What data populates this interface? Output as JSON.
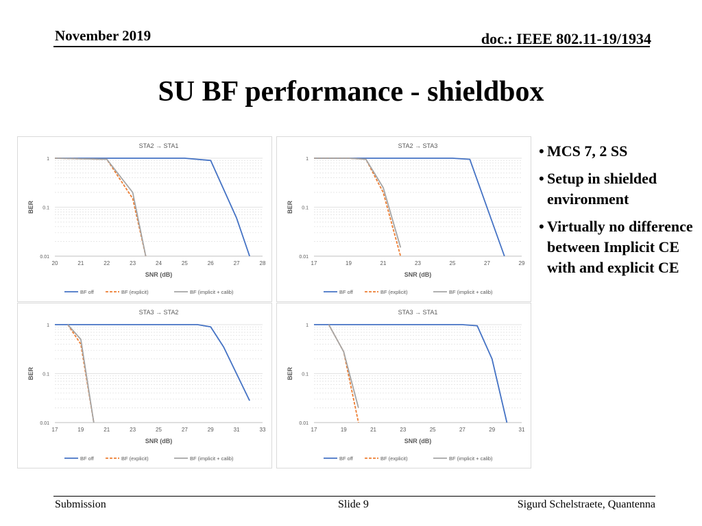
{
  "header": {
    "date": "November 2019",
    "doc": "doc.: IEEE 802.11-19/1934"
  },
  "title": "SU BF performance - shieldbox",
  "bullets": [
    "MCS 7, 2 SS",
    "Setup in shielded environment",
    "Virtually no difference between Implicit CE with and explicit CE"
  ],
  "footer": {
    "left": "Submission",
    "center": "Slide 9",
    "right": "Sigurd Schelstraete, Quantenna"
  },
  "colors": {
    "bf_off": "#4472C4",
    "bf_explicit": "#ED7D31",
    "bf_implicit": "#A5A5A5",
    "grid": "#d9d9d9"
  },
  "chart_data": [
    {
      "type": "line",
      "title": "STA2 → STA1",
      "xlabel": "SNR (dB)",
      "ylabel": "BER",
      "yscale": "log",
      "ylim": [
        0.01,
        1
      ],
      "xlim": [
        20,
        28
      ],
      "xticks": [
        20,
        21,
        22,
        23,
        24,
        25,
        26,
        27,
        28
      ],
      "yticks": [
        1,
        0.1,
        0.01
      ],
      "ytick_labels": [
        "1",
        "0.1",
        "0.01"
      ],
      "legend_position": "bottom",
      "grid": true,
      "series": [
        {
          "name": "BF off",
          "style": "solid",
          "color_key": "bf_off",
          "x": [
            20,
            21,
            22,
            23,
            24,
            25,
            26,
            27,
            27.5
          ],
          "y": [
            1,
            1,
            1,
            1,
            1,
            1,
            0.9,
            0.06,
            0.01
          ]
        },
        {
          "name": "BF (explicit)",
          "style": "dashed",
          "color_key": "bf_explicit",
          "x": [
            20,
            21,
            22,
            23,
            23.5
          ],
          "y": [
            1,
            0.97,
            0.95,
            0.15,
            0.01
          ]
        },
        {
          "name": "BF (implicit + calib)",
          "style": "solid",
          "color_key": "bf_implicit",
          "x": [
            20,
            21,
            22,
            23,
            23.5
          ],
          "y": [
            1,
            0.97,
            0.95,
            0.2,
            0.01
          ]
        }
      ]
    },
    {
      "type": "line",
      "title": "STA2 → STA3",
      "xlabel": "SNR (dB)",
      "ylabel": "BER",
      "yscale": "log",
      "ylim": [
        0.01,
        1
      ],
      "xlim": [
        17,
        29
      ],
      "xticks": [
        17,
        19,
        21,
        23,
        25,
        27,
        29
      ],
      "yticks": [
        1,
        0.1,
        0.01
      ],
      "ytick_labels": [
        "1",
        "0.1",
        "0.01"
      ],
      "legend_position": "bottom",
      "grid": true,
      "series": [
        {
          "name": "BF off",
          "style": "solid",
          "color_key": "bf_off",
          "x": [
            17,
            19,
            21,
            23,
            25,
            26,
            28
          ],
          "y": [
            1,
            1,
            1,
            1,
            1,
            0.95,
            0.01
          ]
        },
        {
          "name": "BF (explicit)",
          "style": "dashed",
          "color_key": "bf_explicit",
          "x": [
            17,
            19,
            20,
            21,
            22
          ],
          "y": [
            1,
            1,
            0.95,
            0.2,
            0.01
          ]
        },
        {
          "name": "BF (implicit + calib)",
          "style": "solid",
          "color_key": "bf_implicit",
          "x": [
            17,
            19,
            20,
            21,
            22
          ],
          "y": [
            1,
            1,
            0.95,
            0.25,
            0.015
          ]
        }
      ]
    },
    {
      "type": "line",
      "title": "STA3 → STA2",
      "xlabel": "SNR (dB)",
      "ylabel": "BER",
      "yscale": "log",
      "ylim": [
        0.01,
        1
      ],
      "xlim": [
        17,
        33
      ],
      "xticks": [
        17,
        19,
        21,
        23,
        25,
        27,
        29,
        31,
        33
      ],
      "yticks": [
        1,
        0.1,
        0.01
      ],
      "ytick_labels": [
        "1",
        "0.1",
        "0.01"
      ],
      "legend_position": "bottom",
      "grid": true,
      "series": [
        {
          "name": "BF off",
          "style": "solid",
          "color_key": "bf_off",
          "x": [
            17,
            18,
            20,
            22,
            24,
            26,
            28,
            29,
            30,
            32
          ],
          "y": [
            1,
            1,
            1,
            1,
            1,
            1,
            1,
            0.9,
            0.35,
            0.028
          ]
        },
        {
          "name": "BF (explicit)",
          "style": "dashed",
          "color_key": "bf_explicit",
          "x": [
            18,
            19,
            20
          ],
          "y": [
            1,
            0.4,
            0.01
          ]
        },
        {
          "name": "BF (implicit + calib)",
          "style": "solid",
          "color_key": "bf_implicit",
          "x": [
            18,
            19,
            20
          ],
          "y": [
            1,
            0.5,
            0.01
          ]
        }
      ]
    },
    {
      "type": "line",
      "title": "STA3 → STA1",
      "xlabel": "SNR (dB)",
      "ylabel": "BER",
      "yscale": "log",
      "ylim": [
        0.01,
        1
      ],
      "xlim": [
        17,
        31
      ],
      "xticks": [
        17,
        19,
        21,
        23,
        25,
        27,
        29,
        31
      ],
      "yticks": [
        1,
        0.1,
        0.01
      ],
      "ytick_labels": [
        "1",
        "0.1",
        "0.01"
      ],
      "legend_position": "bottom",
      "grid": true,
      "series": [
        {
          "name": "BF off",
          "style": "solid",
          "color_key": "bf_off",
          "x": [
            17,
            18,
            20,
            22,
            24,
            26,
            27,
            28,
            29,
            30
          ],
          "y": [
            1,
            1,
            1,
            1,
            1,
            1,
            1,
            0.95,
            0.2,
            0.01
          ]
        },
        {
          "name": "BF (explicit)",
          "style": "dashed",
          "color_key": "bf_explicit",
          "x": [
            18,
            19,
            20
          ],
          "y": [
            1,
            0.28,
            0.01
          ]
        },
        {
          "name": "BF (implicit + calib)",
          "style": "solid",
          "color_key": "bf_implicit",
          "x": [
            18,
            19,
            20
          ],
          "y": [
            1,
            0.28,
            0.02
          ]
        }
      ]
    }
  ]
}
